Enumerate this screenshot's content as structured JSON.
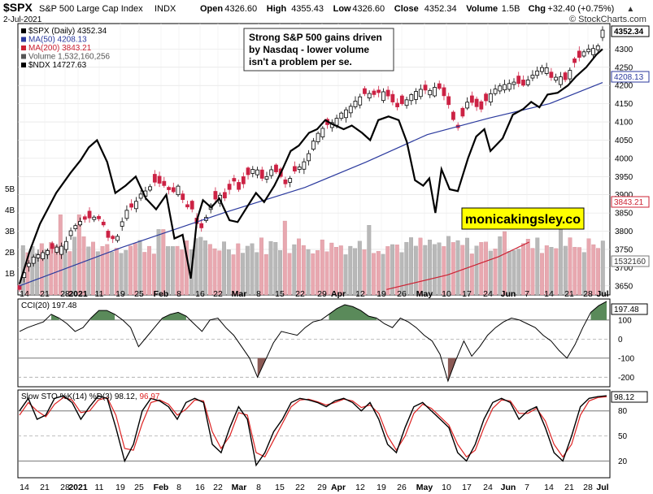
{
  "header": {
    "symbol": "$SPX",
    "name": "S&P 500 Large Cap Index",
    "exchange": "INDX",
    "date": "2-Jul-2021",
    "source": "© StockCharts.com",
    "quote": [
      {
        "label": "Open",
        "value": "4326.60"
      },
      {
        "label": "High",
        "value": "4355.43"
      },
      {
        "label": "Low",
        "value": "4326.60"
      },
      {
        "label": "Close",
        "value": "4352.34"
      },
      {
        "label": "Volume",
        "value": "1.5B"
      },
      {
        "label": "Chg",
        "value": "+32.40 (+0.75%)"
      }
    ],
    "up_arrow": "▲"
  },
  "legend": [
    {
      "text": "$SPX (Daily) 4352.34",
      "color": "#000000"
    },
    {
      "text": "MA(50) 4208.13",
      "color": "#2b3a9e"
    },
    {
      "text": "MA(200) 3843.21",
      "color": "#cc2233"
    },
    {
      "text": "Volume 1,532,160,256",
      "color": "#555555"
    },
    {
      "text": "$NDX 14727.63",
      "color": "#000000"
    }
  ],
  "annotation": {
    "lines": [
      "Strong S&P 500 gains driven",
      "by Nasdaq - lower volume",
      "isn't a problem per se."
    ]
  },
  "watermark": "monicakingsley.co",
  "colors": {
    "up_candle": "#ffffff",
    "down_candle": "#cc2244",
    "ma50": "#2b3a9e",
    "ma200": "#cc2233",
    "ndx": "#000000",
    "volume_up": "#b8b8b8",
    "volume_down": "#e8a8b0",
    "cci_fill": "#5a8a5a",
    "cci_neg_fill": "#8b5a55",
    "sto_k": "#000000",
    "sto_d": "#dd2222",
    "watermark_bg": "#ffff00"
  },
  "chart_data": [
    {
      "type": "candlestick",
      "title": "$SPX S&P 500 Large Cap Index INDX",
      "x_ticks": [
        "14",
        "21",
        "28",
        "2021",
        "11",
        "19",
        "25",
        "Feb",
        "8",
        "16",
        "22",
        "Mar",
        "8",
        "15",
        "22",
        "29",
        "Apr",
        "12",
        "19",
        "26",
        "May",
        "10",
        "17",
        "24",
        "Jun",
        "7",
        "14",
        "21",
        "28",
        "Jul"
      ],
      "y_ticks": [
        3650,
        3700,
        3750,
        3800,
        3850,
        3900,
        3950,
        4000,
        4050,
        4100,
        4150,
        4200,
        4250,
        4300
      ],
      "ylim": [
        3625,
        4370
      ],
      "volume_ticks": [
        "1B",
        "2B",
        "3B",
        "4B",
        "5B"
      ],
      "last_price_label": "4352.34",
      "ma50_label": "4208.13",
      "ma200_label": "3843.21",
      "volume_label": "1532160",
      "series": [
        {
          "name": "$SPX (Daily)",
          "close_path": [
            [
              0,
              3640
            ],
            [
              6,
              3700
            ],
            [
              14,
              3730
            ],
            [
              22,
              3740
            ],
            [
              34,
              3755
            ],
            [
              44,
              3760
            ],
            [
              50,
              3800
            ],
            [
              58,
              3825
            ],
            [
              66,
              3835
            ],
            [
              76,
              3840
            ],
            [
              82,
              3820
            ],
            [
              88,
              3775
            ],
            [
              96,
              3785
            ],
            [
              104,
              3855
            ],
            [
              112,
              3870
            ],
            [
              118,
              3900
            ],
            [
              126,
              3915
            ],
            [
              132,
              3935
            ],
            [
              140,
              3930
            ],
            [
              150,
              3905
            ],
            [
              156,
              3925
            ],
            [
              162,
              3870
            ],
            [
              170,
              3860
            ],
            [
              176,
              3800
            ],
            [
              180,
              3815
            ],
            [
              188,
              3875
            ],
            [
              196,
              3900
            ],
            [
              202,
              3890
            ],
            [
              210,
              3940
            ],
            [
              216,
              3910
            ],
            [
              226,
              3965
            ],
            [
              232,
              3975
            ],
            [
              240,
              3935
            ],
            [
              246,
              3970
            ],
            [
              254,
              3960
            ],
            [
              262,
              3925
            ],
            [
              268,
              3960
            ],
            [
              276,
              3980
            ],
            [
              282,
              4000
            ],
            [
              290,
              4060
            ],
            [
              300,
              4090
            ],
            [
              308,
              4100
            ],
            [
              316,
              4125
            ],
            [
              324,
              4140
            ],
            [
              332,
              4165
            ],
            [
              340,
              4180
            ],
            [
              348,
              4175
            ],
            [
              356,
              4185
            ],
            [
              362,
              4170
            ],
            [
              370,
              4140
            ],
            [
              378,
              4155
            ],
            [
              386,
              4180
            ],
            [
              394,
              4190
            ],
            [
              402,
              4185
            ],
            [
              410,
              4200
            ],
            [
              418,
              4165
            ],
            [
              424,
              4130
            ],
            [
              428,
              4070
            ],
            [
              434,
              4110
            ],
            [
              440,
              4160
            ],
            [
              446,
              4150
            ],
            [
              452,
              4130
            ],
            [
              458,
              4160
            ],
            [
              464,
              4185
            ],
            [
              472,
              4200
            ],
            [
              480,
              4205
            ],
            [
              486,
              4210
            ],
            [
              494,
              4200
            ],
            [
              502,
              4225
            ],
            [
              510,
              4245
            ],
            [
              516,
              4255
            ],
            [
              522,
              4220
            ],
            [
              530,
              4225
            ],
            [
              536,
              4215
            ],
            [
              542,
              4255
            ],
            [
              550,
              4280
            ],
            [
              556,
              4300
            ],
            [
              562,
              4300
            ],
            [
              568,
              4310
            ],
            [
              572,
              4352
            ]
          ]
        },
        {
          "name": "MA(50)",
          "path": [
            [
              0,
              3650
            ],
            [
              100,
              3755
            ],
            [
              200,
              3850
            ],
            [
              280,
              3920
            ],
            [
              340,
              3990
            ],
            [
              400,
              4065
            ],
            [
              460,
              4110
            ],
            [
              520,
              4150
            ],
            [
              572,
              4208
            ]
          ]
        },
        {
          "name": "MA(200)",
          "path": [
            [
              360,
              3640
            ],
            [
              420,
              3680
            ],
            [
              470,
              3730
            ],
            [
              500,
              3770
            ]
          ]
        },
        {
          "name": "$NDX",
          "path": [
            [
              0,
              3655
            ],
            [
              10,
              3745
            ],
            [
              20,
              3820
            ],
            [
              36,
              3905
            ],
            [
              50,
              3960
            ],
            [
              60,
              3995
            ],
            [
              68,
              4030
            ],
            [
              76,
              4050
            ],
            [
              86,
              3990
            ],
            [
              94,
              3905
            ],
            [
              104,
              3925
            ],
            [
              114,
              3950
            ],
            [
              124,
              3890
            ],
            [
              134,
              3860
            ],
            [
              144,
              3900
            ],
            [
              152,
              3780
            ],
            [
              160,
              3790
            ],
            [
              168,
              3670
            ],
            [
              174,
              3830
            ],
            [
              180,
              3885
            ],
            [
              188,
              3865
            ],
            [
              196,
              3890
            ],
            [
              206,
              3830
            ],
            [
              214,
              3825
            ],
            [
              224,
              3870
            ],
            [
              232,
              3905
            ],
            [
              240,
              3880
            ],
            [
              250,
              3925
            ],
            [
              258,
              3970
            ],
            [
              266,
              4020
            ],
            [
              274,
              4035
            ],
            [
              284,
              4070
            ],
            [
              292,
              4080
            ],
            [
              300,
              4105
            ],
            [
              306,
              4095
            ],
            [
              318,
              4080
            ],
            [
              326,
              4090
            ],
            [
              336,
              4070
            ],
            [
              344,
              4050
            ],
            [
              352,
              4105
            ],
            [
              362,
              4115
            ],
            [
              372,
              4105
            ],
            [
              380,
              4045
            ],
            [
              388,
              3940
            ],
            [
              396,
              3925
            ],
            [
              402,
              3945
            ],
            [
              408,
              3850
            ],
            [
              414,
              3970
            ],
            [
              422,
              3915
            ],
            [
              430,
              3910
            ],
            [
              440,
              4000
            ],
            [
              448,
              4060
            ],
            [
              456,
              4080
            ],
            [
              462,
              4020
            ],
            [
              474,
              4055
            ],
            [
              484,
              4120
            ],
            [
              494,
              4135
            ],
            [
              502,
              4155
            ],
            [
              510,
              4140
            ],
            [
              518,
              4175
            ],
            [
              528,
              4180
            ],
            [
              538,
              4200
            ],
            [
              546,
              4225
            ],
            [
              556,
              4250
            ],
            [
              566,
              4285
            ],
            [
              572,
              4300
            ]
          ]
        }
      ]
    },
    {
      "type": "line",
      "title": "CCI(20) 197.48",
      "series": [
        {
          "name": "CCI(20)",
          "values": [
            40,
            60,
            75,
            90,
            130,
            110,
            80,
            40,
            60,
            110,
            150,
            150,
            130,
            100,
            60,
            -40,
            10,
            60,
            110,
            130,
            140,
            120,
            80,
            40,
            100,
            110,
            60,
            20,
            -40,
            -100,
            -200,
            -110,
            -20,
            40,
            30,
            20,
            60,
            90,
            100,
            130,
            160,
            180,
            170,
            150,
            120,
            110,
            80,
            60,
            110,
            90,
            60,
            20,
            -10,
            -80,
            -220,
            -110,
            -10,
            -90,
            -40,
            20,
            60,
            90,
            110,
            100,
            80,
            60,
            20,
            -10,
            -60,
            -100,
            -30,
            60,
            140,
            175,
            197.48
          ]
        }
      ],
      "y_ticks": [
        -200,
        -100,
        0,
        100
      ],
      "ylim": [
        -250,
        210
      ],
      "last_value_label": "197.48"
    },
    {
      "type": "line",
      "title": "Slow STO %K(14) %D(3) 98.12, 96.97",
      "series": [
        {
          "name": "%K(14)",
          "values": [
            80,
            95,
            70,
            75,
            95,
            98,
            90,
            70,
            85,
            98,
            95,
            60,
            20,
            40,
            80,
            95,
            92,
            85,
            70,
            90,
            95,
            90,
            40,
            30,
            60,
            85,
            70,
            15,
            30,
            55,
            70,
            90,
            95,
            93,
            90,
            85,
            92,
            95,
            90,
            80,
            90,
            70,
            40,
            30,
            60,
            85,
            90,
            80,
            70,
            60,
            30,
            20,
            40,
            70,
            90,
            95,
            90,
            70,
            80,
            85,
            60,
            30,
            20,
            50,
            85,
            95,
            97,
            98.12
          ]
        },
        {
          "name": "%D(3)",
          "values": [
            75,
            90,
            80,
            73,
            88,
            96,
            93,
            78,
            80,
            93,
            96,
            75,
            35,
            33,
            65,
            90,
            93,
            88,
            75,
            82,
            93,
            92,
            55,
            35,
            50,
            78,
            75,
            30,
            25,
            45,
            65,
            85,
            93,
            94,
            91,
            87,
            90,
            94,
            92,
            84,
            87,
            77,
            50,
            33,
            50,
            77,
            88,
            83,
            73,
            63,
            40,
            25,
            33,
            60,
            83,
            93,
            92,
            77,
            77,
            83,
            68,
            40,
            25,
            40,
            75,
            92,
            96,
            96.97
          ]
        }
      ],
      "y_ticks": [
        20,
        50,
        80
      ],
      "ylim": [
        0,
        105
      ],
      "last_k_label": "98.12",
      "last_d_label": "96.97"
    }
  ]
}
